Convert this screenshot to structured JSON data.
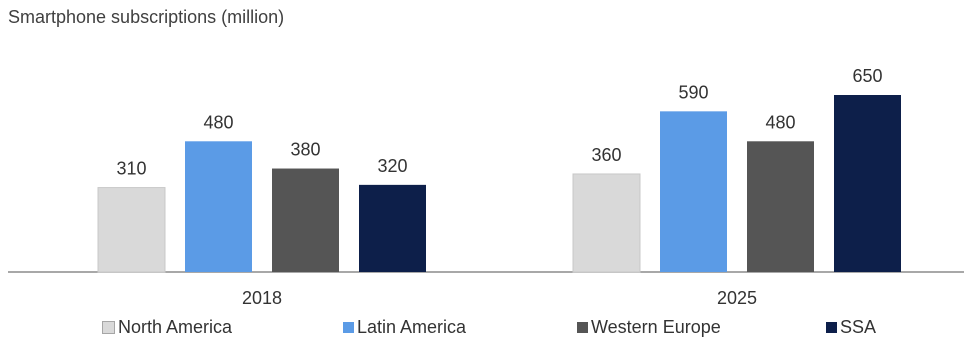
{
  "chart_data": {
    "type": "bar",
    "title": "Smartphone subscriptions (million)",
    "categories": [
      "2018",
      "2025"
    ],
    "series": [
      {
        "name": "North America",
        "values": [
          310,
          360
        ],
        "color": "#d9d9d9"
      },
      {
        "name": "Latin America",
        "values": [
          480,
          590
        ],
        "color": "#5b9be6"
      },
      {
        "name": "Western Europe",
        "values": [
          380,
          480
        ],
        "color": "#555555"
      },
      {
        "name": "SSA",
        "values": [
          320,
          650
        ],
        "color": "#0d1f4a"
      }
    ],
    "ylim": [
      0,
      700
    ],
    "grid": false,
    "legend": "bottom"
  }
}
